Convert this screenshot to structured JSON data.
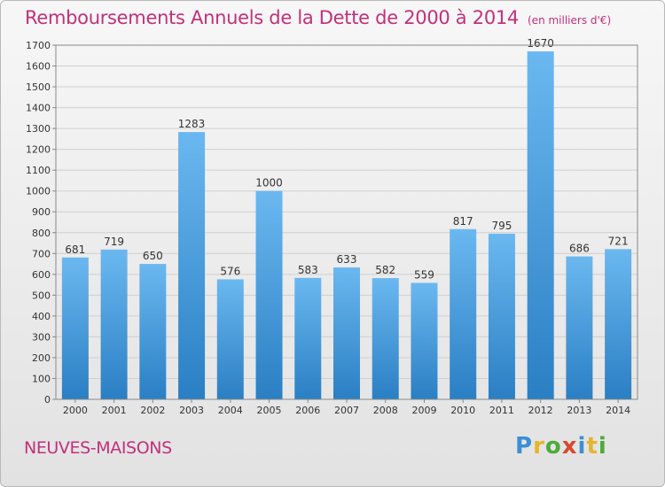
{
  "header": {
    "title": "Remboursements Annuels de la Dette de 2000 à 2014",
    "unit": "(en milliers d'€)"
  },
  "footer": {
    "place": "NEUVES-MAISONS",
    "brand": "Proxiti"
  },
  "colors": {
    "title": "#c2307a",
    "bar_light": "#6bb8f0",
    "bar_dark": "#2a7fc3"
  },
  "chart_data": {
    "type": "bar",
    "title": "Remboursements Annuels de la Dette de 2000 à 2014",
    "ylabel": "en milliers d'€",
    "xlabel": "",
    "categories": [
      "2000",
      "2001",
      "2002",
      "2003",
      "2004",
      "2005",
      "2006",
      "2007",
      "2008",
      "2009",
      "2010",
      "2011",
      "2012",
      "2013",
      "2014"
    ],
    "values": [
      681,
      719,
      650,
      1283,
      576,
      1000,
      583,
      633,
      582,
      559,
      817,
      795,
      1670,
      686,
      721
    ],
    "ylim": [
      0,
      1700
    ],
    "yticks": [
      0,
      100,
      200,
      300,
      400,
      500,
      600,
      700,
      800,
      900,
      1000,
      1100,
      1200,
      1300,
      1400,
      1500,
      1600,
      1700
    ],
    "grid": true
  }
}
